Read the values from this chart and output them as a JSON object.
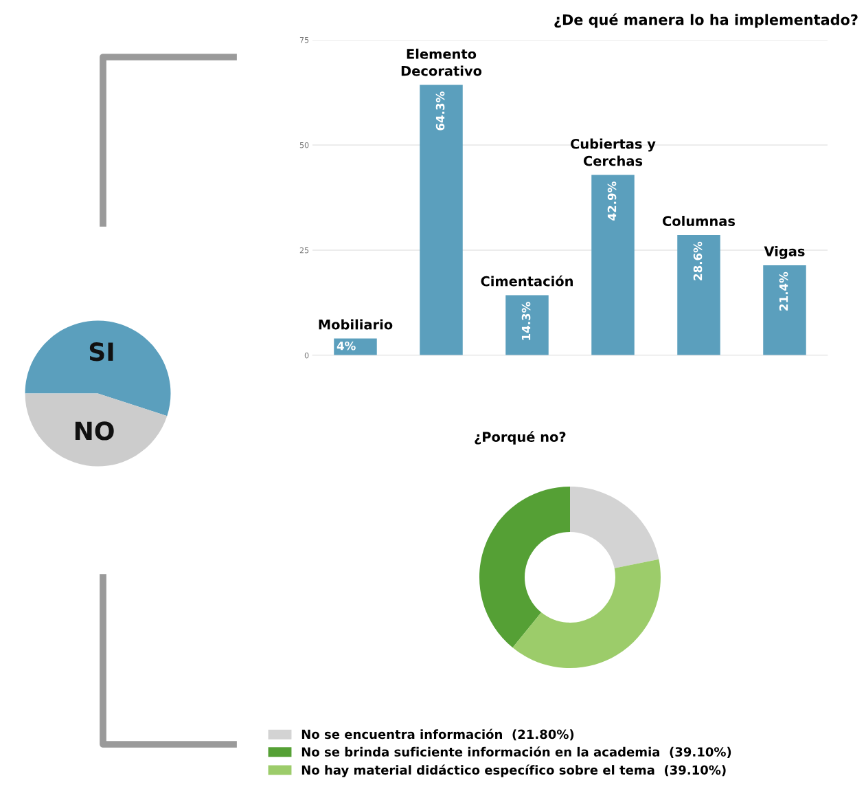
{
  "chart_data": [
    {
      "type": "pie",
      "categories": [
        "SI",
        "NO"
      ],
      "values": [
        55,
        45
      ],
      "colors": [
        "#5b9fbd",
        "#cccccc"
      ]
    },
    {
      "type": "bar",
      "title": "¿De qué manera lo ha implementado?",
      "categories": [
        "Mobiliario",
        "Elemento\nDecorativo",
        "Cimentación",
        "Cubiertas y\nCerchas",
        "Columnas",
        "Vigas"
      ],
      "values": [
        4,
        64.3,
        14.3,
        42.9,
        28.6,
        21.4
      ],
      "value_labels": [
        "4%",
        "64.3%",
        "14.3%",
        "42.9%",
        "28.6%",
        "21.4%"
      ],
      "color": "#5b9fbd",
      "ylim": [
        0,
        75
      ],
      "yticks": [
        0,
        25,
        50,
        75
      ],
      "grid": "y"
    },
    {
      "type": "donut",
      "title": "¿Porqué no?",
      "categories": [
        "No se encuentra información",
        "No se brinda suficiente información en la academia",
        "No hay material didáctico específico sobre el tema"
      ],
      "values": [
        21.8,
        39.1,
        39.1
      ],
      "value_labels": [
        "(21.80%)",
        "(39.10%)",
        "(39.10%)"
      ],
      "colors": [
        "#d3d3d3",
        "#55a035",
        "#9ccc6a"
      ],
      "legend": "bottom"
    }
  ]
}
